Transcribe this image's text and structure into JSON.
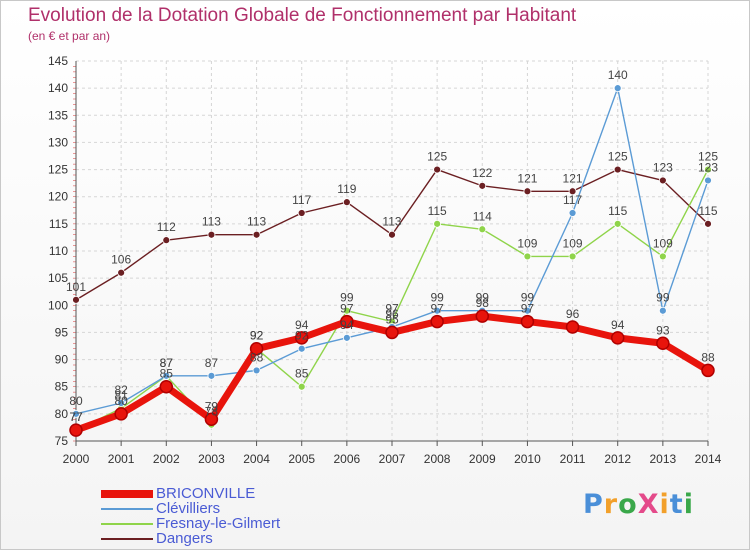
{
  "header": {
    "title": "Evolution de la Dotation Globale de Fonctionnement par Habitant",
    "subtitle": "(en € et par an)"
  },
  "logo": {
    "text": "ProXiti",
    "letters": [
      "P",
      "r",
      "o",
      "X",
      "i",
      "t",
      "i"
    ],
    "colors": [
      "#4a8fd8",
      "#f2a02a",
      "#3aa84a",
      "#e44a8a",
      "#f2a02a",
      "#4a8fd8",
      "#3aa84a"
    ]
  },
  "chart_data": {
    "type": "line",
    "title": "Evolution de la Dotation Globale de Fonctionnement par Habitant",
    "subtitle": "(en € et par an)",
    "xlabel": "",
    "ylabel": "",
    "x": [
      "2000",
      "2001",
      "2002",
      "2003",
      "2004",
      "2005",
      "2006",
      "2007",
      "2008",
      "2009",
      "2010",
      "2011",
      "2012",
      "2013",
      "2014"
    ],
    "ylim": [
      75,
      145
    ],
    "yticks": [
      75,
      80,
      85,
      90,
      95,
      100,
      105,
      110,
      115,
      120,
      125,
      130,
      135,
      140,
      145
    ],
    "grid": true,
    "legend_position": "bottom-left",
    "series": [
      {
        "name": "BRICONVILLE",
        "color": "#e8140c",
        "values": [
          77,
          80,
          85,
          79,
          92,
          94,
          97,
          95,
          97,
          98,
          97,
          96,
          94,
          93,
          88
        ]
      },
      {
        "name": "Clévilliers",
        "color": "#5b9bd5",
        "values": [
          80,
          82,
          87,
          87,
          88,
          92,
          94,
          96,
          99,
          99,
          99,
          117,
          140,
          99,
          123
        ]
      },
      {
        "name": "Fresnay-le-Gilmert",
        "color": "#8fd44a",
        "values": [
          77,
          81,
          87,
          78,
          92,
          85,
          99,
          97,
          115,
          114,
          109,
          109,
          115,
          109,
          125
        ]
      },
      {
        "name": "Dangers",
        "color": "#6b1f22",
        "values": [
          101,
          106,
          112,
          113,
          113,
          117,
          119,
          113,
          125,
          122,
          121,
          121,
          125,
          123,
          115
        ]
      }
    ]
  }
}
